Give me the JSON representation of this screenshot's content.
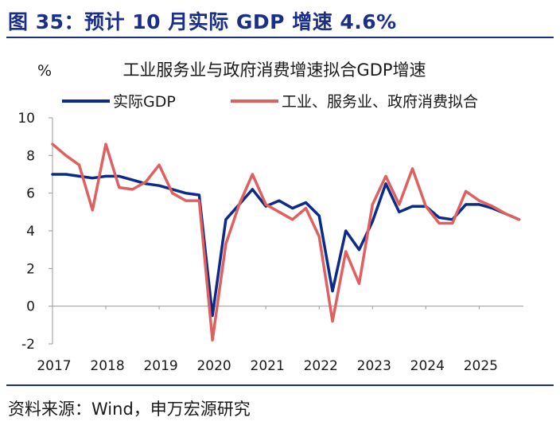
{
  "figure": {
    "title": "图 35：预计 10 月实际 GDP 增速 4.6%",
    "source": "资料来源：Wind，申万宏源研究",
    "colors": {
      "accent": "#1a2f8a"
    }
  },
  "chart_data": {
    "type": "line",
    "title": "工业服务业与政府消费增速拟合GDP增速",
    "ylabel": "%",
    "xlabel": "",
    "ylim": [
      -2,
      10
    ],
    "yticks": [
      -2,
      0,
      2,
      4,
      6,
      8,
      10
    ],
    "xlim": [
      2017,
      2025.83
    ],
    "xticks": [
      "2017",
      "2018",
      "2019",
      "2020",
      "2021",
      "2022",
      "2023",
      "2024",
      "2025"
    ],
    "grid": false,
    "legend": "top",
    "series": [
      {
        "name": "实际GDP",
        "color": "#0b2a8a",
        "x": [
          2017.0,
          2017.25,
          2017.5,
          2017.75,
          2018.0,
          2018.25,
          2018.5,
          2018.75,
          2019.0,
          2019.25,
          2019.5,
          2019.75,
          2020.0,
          2020.25,
          2020.5,
          2020.75,
          2021.0,
          2021.25,
          2021.5,
          2021.75,
          2022.0,
          2022.25,
          2022.5,
          2022.75,
          2023.0,
          2023.25,
          2023.5,
          2023.75,
          2024.0,
          2024.25,
          2024.5,
          2024.75,
          2025.0,
          2025.25,
          2025.5,
          2025.75
        ],
        "values": [
          7.0,
          7.0,
          6.9,
          6.8,
          6.9,
          6.9,
          6.7,
          6.5,
          6.4,
          6.2,
          6.0,
          5.9,
          -0.5,
          4.6,
          5.4,
          6.2,
          5.3,
          5.6,
          5.2,
          5.5,
          4.8,
          0.8,
          4.0,
          3.0,
          4.5,
          6.5,
          5.0,
          5.3,
          5.3,
          4.7,
          4.6,
          5.4,
          5.4,
          5.2,
          4.9,
          4.6
        ]
      },
      {
        "name": "工业、服务业、政府消费拟合",
        "color": "#e06060",
        "x": [
          2017.0,
          2017.25,
          2017.5,
          2017.75,
          2018.0,
          2018.25,
          2018.5,
          2018.75,
          2019.0,
          2019.25,
          2019.5,
          2019.75,
          2020.0,
          2020.25,
          2020.5,
          2020.75,
          2021.0,
          2021.25,
          2021.5,
          2021.75,
          2022.0,
          2022.25,
          2022.5,
          2022.75,
          2023.0,
          2023.25,
          2023.5,
          2023.75,
          2024.0,
          2024.25,
          2024.5,
          2024.75,
          2025.0,
          2025.25,
          2025.5,
          2025.75
        ],
        "values": [
          8.6,
          8.0,
          7.5,
          5.1,
          8.6,
          6.3,
          6.2,
          6.6,
          7.5,
          6.0,
          5.6,
          5.6,
          -1.8,
          3.3,
          5.4,
          7.0,
          5.4,
          5.0,
          4.6,
          5.2,
          3.7,
          -0.8,
          2.9,
          1.2,
          5.4,
          6.9,
          5.4,
          7.3,
          5.3,
          4.4,
          4.4,
          6.1,
          5.6,
          5.3,
          4.9,
          4.6
        ]
      }
    ]
  }
}
